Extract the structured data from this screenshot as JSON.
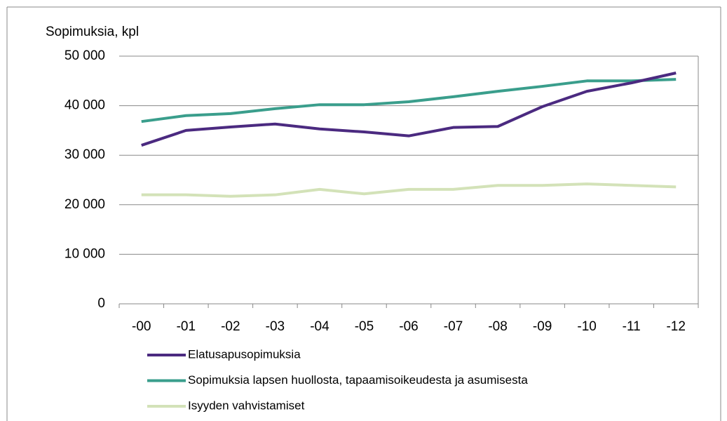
{
  "chart_data": {
    "type": "line",
    "y_axis_label": "Sopimuksia, kpl",
    "categories": [
      "-00",
      "-01",
      "-02",
      "-03",
      "-04",
      "-05",
      "-06",
      "-07",
      "-08",
      "-09",
      "-10",
      "-11",
      "-12"
    ],
    "series": [
      {
        "name": "Elatusapusopimuksia",
        "color": "#4b2a80",
        "values": [
          32000,
          35000,
          35700,
          36300,
          35300,
          34700,
          33900,
          35600,
          35800,
          39800,
          42900,
          44600,
          46600
        ]
      },
      {
        "name": "Sopimuksia lapsen huollosta, tapaamisoikeudesta ja asumisesta",
        "color": "#3a9e8c",
        "values": [
          36800,
          38000,
          38400,
          39400,
          40200,
          40200,
          40800,
          41800,
          42900,
          43900,
          45000,
          45000,
          45300
        ]
      },
      {
        "name": "Isyyden vahvistamiset",
        "color": "#d3e2b8",
        "values": [
          22000,
          22000,
          21700,
          22000,
          23100,
          22200,
          23100,
          23100,
          23900,
          23900,
          24200,
          23900,
          23600
        ]
      }
    ],
    "ylim": [
      0,
      50000
    ],
    "yticks": [
      {
        "value": 0,
        "label": "0"
      },
      {
        "value": 10000,
        "label": "10 000"
      },
      {
        "value": 20000,
        "label": "20 000"
      },
      {
        "value": 30000,
        "label": "30 000"
      },
      {
        "value": 40000,
        "label": "40 000"
      },
      {
        "value": 50000,
        "label": "50 000"
      }
    ],
    "grid": true
  }
}
